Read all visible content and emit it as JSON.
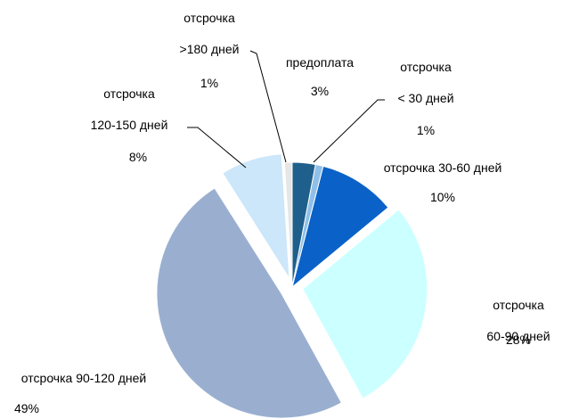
{
  "chart_data": {
    "type": "pie",
    "categories": [
      "предоплата",
      "отсрочка\n< 30 дней",
      "отсрочка 30-60 дней",
      "отсрочка 60-90 дней",
      "отсрочка 90-120 дней",
      "отсрочка\n120-150 дней",
      "отсрочка\n>180 дней"
    ],
    "values": [
      3,
      1,
      10,
      28,
      49,
      8,
      1
    ],
    "value_labels": [
      "3%",
      "1%",
      "10%",
      "28%",
      "49%",
      "8%",
      "1%"
    ],
    "colors": [
      "#1f5f8b",
      "#8fc0e8",
      "#0a62c8",
      "#ccffff",
      "#9aafd0",
      "#cce6fa",
      "#e6e6e6"
    ]
  }
}
